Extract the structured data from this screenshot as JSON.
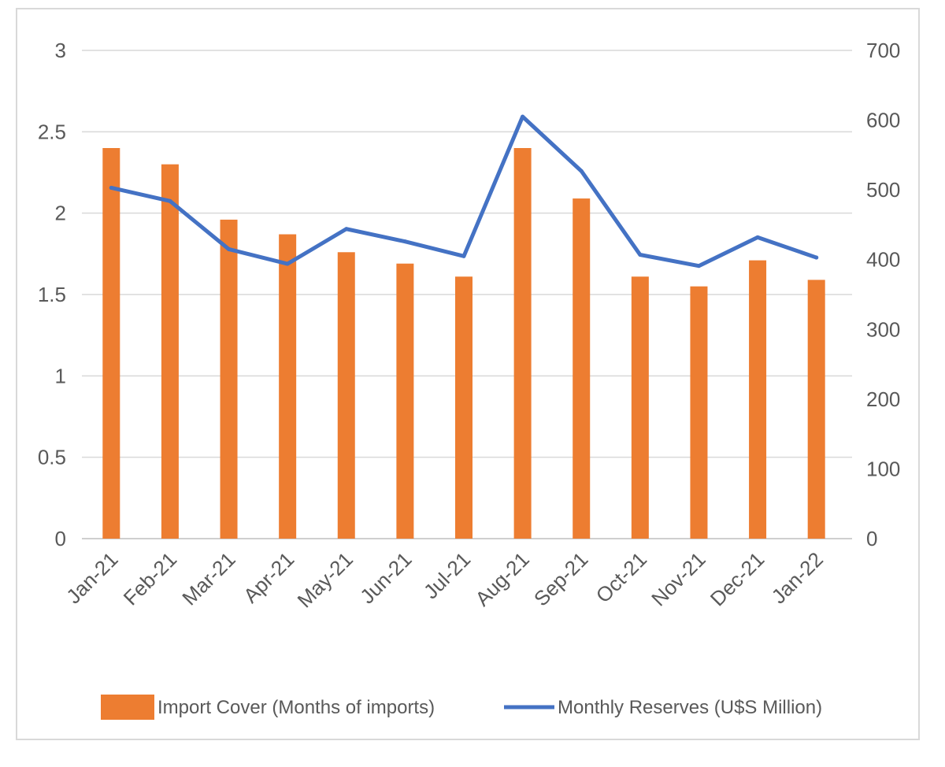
{
  "chart_data": {
    "type": "bar",
    "categories": [
      "Jan-21",
      "Feb-21",
      "Mar-21",
      "Apr-21",
      "May-21",
      "Jun-21",
      "Jul-21",
      "Aug-21",
      "Sep-21",
      "Oct-21",
      "Nov-21",
      "Dec-21",
      "Jan-22"
    ],
    "series": [
      {
        "name": "Import Cover (Months of imports)",
        "type": "bar",
        "axis": "left",
        "color": "#ed7d31",
        "values": [
          2.4,
          2.3,
          1.96,
          1.87,
          1.76,
          1.69,
          1.61,
          2.4,
          2.09,
          1.61,
          1.55,
          1.71,
          1.59
        ]
      },
      {
        "name": "Monthly Reserves (U$S Million)",
        "type": "line",
        "axis": "right",
        "color": "#4472c4",
        "values": [
          503,
          484,
          415,
          394,
          444,
          426,
          405,
          605,
          527,
          407,
          391,
          432,
          403
        ]
      }
    ],
    "y_left": {
      "ylim": [
        0,
        3
      ],
      "ticks": [
        "0",
        "0.5",
        "1",
        "1.5",
        "2",
        "2.5",
        "3"
      ]
    },
    "y_right": {
      "ylim": [
        0,
        700
      ],
      "ticks": [
        "0",
        "100",
        "200",
        "300",
        "400",
        "500",
        "600",
        "700"
      ]
    },
    "grid": true,
    "legend_position": "bottom"
  }
}
